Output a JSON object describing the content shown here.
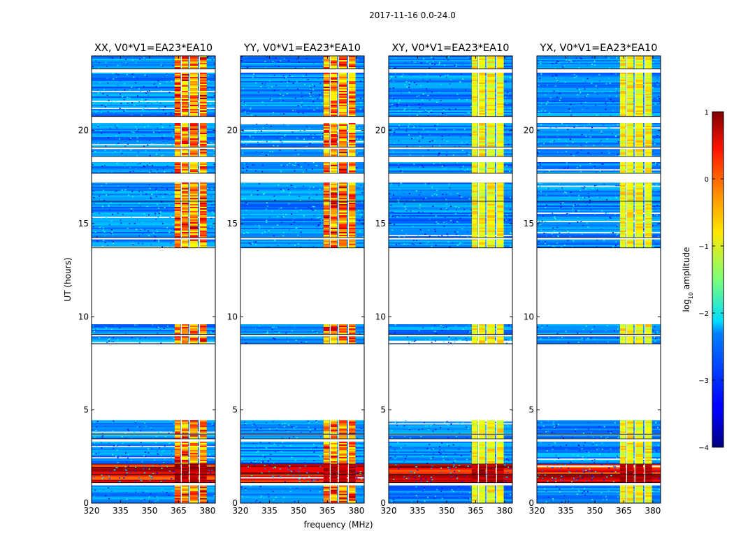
{
  "chart_data": {
    "type": "heatmap",
    "suptitle": "2017-11-16 0.0-24.0",
    "xlabel": "frequency (MHz)",
    "ylabel": "UT (hours)",
    "xlim": [
      320,
      384
    ],
    "ylim": [
      0,
      24
    ],
    "xticks": [
      "320",
      "335",
      "350",
      "365",
      "380"
    ],
    "xtick_values": [
      320,
      335,
      350,
      365,
      380
    ],
    "yticks": [
      "0",
      "5",
      "10",
      "15",
      "20"
    ],
    "ytick_values": [
      0,
      5,
      10,
      15,
      20
    ],
    "panels": [
      {
        "name": "XX",
        "title": "XX, V0*V1=EA23*EA10"
      },
      {
        "name": "YY",
        "title": "YY, V0*V1=EA23*EA10"
      },
      {
        "name": "XY",
        "title": "XY, V0*V1=EA23*EA10"
      },
      {
        "name": "YX",
        "title": "YX, V0*V1=EA23*EA10"
      }
    ],
    "colorbar": {
      "label": "log",
      "label_sub": "10",
      "label_rest": " amplitude",
      "range": [
        -4,
        1
      ],
      "ticks": [
        "1",
        "0",
        "−1",
        "−2",
        "−3",
        "−4"
      ],
      "tick_values": [
        1,
        0,
        -1,
        -2,
        -3,
        -4
      ],
      "colormap": "jet"
    },
    "data_blocks_ut": [
      [
        0.0,
        0.95
      ],
      [
        1.1,
        1.55
      ],
      [
        1.55,
        2.1
      ],
      [
        2.1,
        3.3
      ],
      [
        3.45,
        3.65
      ],
      [
        3.7,
        4.45
      ],
      [
        8.55,
        8.95
      ],
      [
        9.05,
        9.6
      ],
      [
        13.7,
        14.15
      ],
      [
        14.25,
        16.2
      ],
      [
        16.2,
        17.2
      ],
      [
        17.7,
        18.3
      ],
      [
        18.6,
        19.0
      ],
      [
        19.1,
        20.4
      ],
      [
        20.75,
        23.1
      ],
      [
        23.3,
        24.0
      ]
    ],
    "band_regions_mhz": [
      [
        363,
        366
      ],
      [
        366.5,
        370
      ],
      [
        371,
        375
      ],
      [
        376,
        379.5
      ]
    ],
    "strong_rfi_ut": [
      [
        1.1,
        2.1
      ]
    ],
    "colors": {
      "low": "#00008f",
      "high": "#800000"
    }
  }
}
